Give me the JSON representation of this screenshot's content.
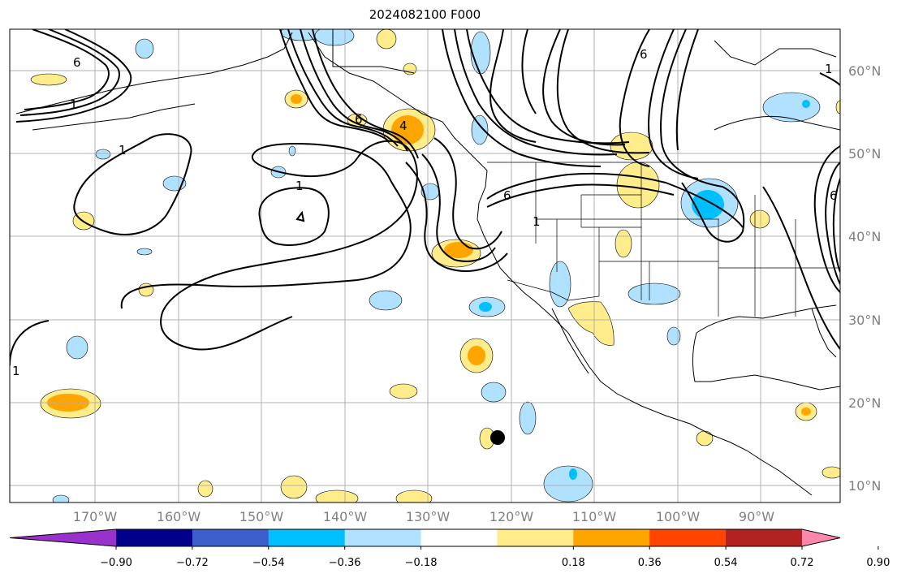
{
  "title": "2024082100 F000",
  "lon_labels": [
    "170°W",
    "160°W",
    "150°W",
    "140°W",
    "130°W",
    "120°W",
    "110°W",
    "100°W",
    "90°W"
  ],
  "lat_labels": [
    "60°N",
    "50°N",
    "40°N",
    "30°N",
    "20°N",
    "10°N"
  ],
  "colorbar": {
    "colors": [
      "#9932cc",
      "#00008b",
      "#3a5fcd",
      "#00bfff",
      "#b0e2ff",
      "#ffffff",
      "#ffec8b",
      "#ffa500",
      "#ff4500",
      "#b22222",
      "#ff88aa"
    ],
    "ticks": [
      "−0.90",
      "−0.72",
      "−0.54",
      "−0.36",
      "−0.18",
      "0.18",
      "0.36",
      "0.54",
      "0.72",
      "0.90"
    ]
  },
  "contour_labels": [
    "1",
    "1",
    "1",
    "1",
    "6",
    "6",
    "6",
    "6",
    "4",
    "1",
    "1",
    "6"
  ],
  "marker": "storm-center-dot"
}
